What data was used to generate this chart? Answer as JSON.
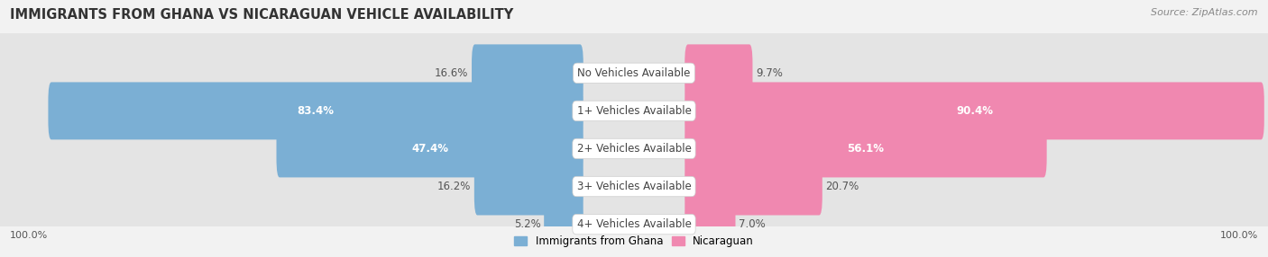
{
  "title": "IMMIGRANTS FROM GHANA VS NICARAGUAN VEHICLE AVAILABILITY",
  "source": "Source: ZipAtlas.com",
  "categories": [
    "No Vehicles Available",
    "1+ Vehicles Available",
    "2+ Vehicles Available",
    "3+ Vehicles Available",
    "4+ Vehicles Available"
  ],
  "ghana_values": [
    16.6,
    83.4,
    47.4,
    16.2,
    5.2
  ],
  "nicaraguan_values": [
    9.7,
    90.4,
    56.1,
    20.7,
    7.0
  ],
  "ghana_color": "#7bafd4",
  "ghana_color_dark": "#5a9abf",
  "nicaraguan_color": "#f088b0",
  "nicaraguan_color_dark": "#e0608a",
  "background_color": "#f2f2f2",
  "row_bg_color": "#e8e8e8",
  "legend_ghana": "Immigrants from Ghana",
  "legend_nicaraguan": "Nicaraguan",
  "max_value": 100.0,
  "title_fontsize": 10.5,
  "label_fontsize": 8.5,
  "value_fontsize": 8.5,
  "tick_fontsize": 8,
  "source_fontsize": 8
}
